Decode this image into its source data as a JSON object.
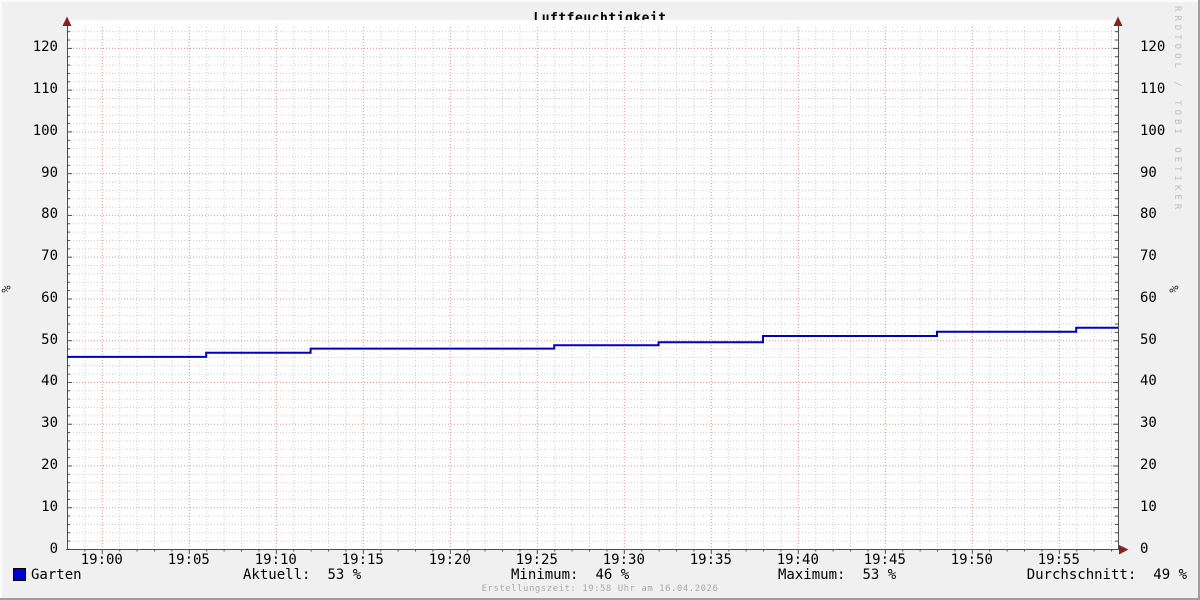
{
  "title": "Luftfeuchtigkeit",
  "watermark": "RRDTOOL / TOBI OETIKER",
  "y_axis_label_left": "%",
  "y_axis_label_right": "%",
  "footer": "Erstellungszeit: 19:58 Uhr am 16.04.2026",
  "legend": {
    "series_label": "Garten",
    "series_swatch_color": "#0000cc",
    "stats": [
      {
        "label": "Aktuell:",
        "value": "53 %"
      },
      {
        "label": "Minimum:",
        "value": "46 %"
      },
      {
        "label": "Maximum:",
        "value": "53 %"
      },
      {
        "label": "Durchschnitt:",
        "value": "49 %"
      }
    ]
  },
  "chart_data": {
    "type": "line",
    "line_style": "step-after",
    "title": "Luftfeuchtigkeit",
    "xlabel": "",
    "ylabel": "%",
    "ylim": [
      0,
      125
    ],
    "y_major_ticks": [
      0,
      10,
      20,
      30,
      40,
      50,
      60,
      70,
      80,
      90,
      100,
      110,
      120
    ],
    "y_minor_interval": 2,
    "x_tick_labels": [
      "19:00",
      "19:05",
      "19:10",
      "19:15",
      "19:20",
      "19:25",
      "19:30",
      "19:35",
      "19:40",
      "19:45",
      "19:50",
      "19:55"
    ],
    "x_tick_interval_min": 5,
    "x_first_tick_offset_min": 2,
    "x_minor_interval_min": 1,
    "x_window_min": 60.4,
    "grid": true,
    "legend_position": "bottom",
    "series": [
      {
        "name": "Garten",
        "color": "#0000c0",
        "points_min_value": [
          [
            0,
            46
          ],
          [
            8,
            47
          ],
          [
            14,
            48
          ],
          [
            28,
            48.8
          ],
          [
            34,
            49.5
          ],
          [
            40,
            51
          ],
          [
            50,
            52
          ],
          [
            58,
            53
          ],
          [
            60.4,
            53
          ]
        ],
        "stats": {
          "aktuell": 53,
          "minimum": 46,
          "maximum": 53,
          "durchschnitt": 49
        }
      }
    ],
    "colors": {
      "background": "#f0f0f0",
      "canvas": "#ffffff",
      "grid_major": "#e09595",
      "grid_minor": "#cfcfcf",
      "axis": "#4d4d4d",
      "arrow": "#872222",
      "text": "#000000",
      "footer_text": "#a9a9a9",
      "watermark_text": "#bdbdbd"
    }
  }
}
